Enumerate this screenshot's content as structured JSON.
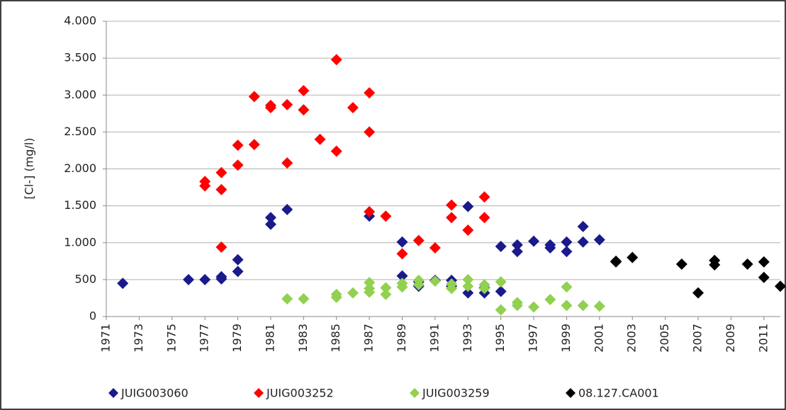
{
  "chart_data": {
    "type": "scatter",
    "y_label": "[Cl-] (mg/l)",
    "xlim": [
      1971,
      2012
    ],
    "xticks": [
      1971,
      1973,
      1975,
      1977,
      1979,
      1981,
      1983,
      1985,
      1987,
      1989,
      1991,
      1993,
      1995,
      1997,
      1999,
      2001,
      2003,
      2005,
      2007,
      2009,
      2011
    ],
    "ylim": [
      0,
      4000
    ],
    "yticks": [
      0,
      500,
      {
        "value": 1000,
        "label": "1.000"
      },
      {
        "value": 1500,
        "label": "1.500"
      },
      {
        "value": 2000,
        "label": "2.000"
      },
      {
        "value": 2500,
        "label": "2.500"
      },
      {
        "value": 3000,
        "label": "3.000"
      },
      {
        "value": 3500,
        "label": "3.500"
      },
      {
        "value": 4000,
        "label": "4.000"
      }
    ],
    "grid": true,
    "legend": "bottom",
    "series": [
      {
        "name": "JUIG003060",
        "color": "#1a1a8c",
        "x": [
          1972,
          1976,
          1977,
          1978,
          1978,
          1979,
          1979,
          1981,
          1981,
          1982,
          1987,
          1989,
          1989,
          1990,
          1990,
          1991,
          1992,
          1992,
          1993,
          1993,
          1994,
          1994,
          1995,
          1995,
          1996,
          1996,
          1997,
          1998,
          1998,
          1999,
          1999,
          2000,
          2000,
          2001
        ],
        "values": [
          450,
          500,
          500,
          510,
          540,
          610,
          770,
          1250,
          1340,
          1450,
          1360,
          1010,
          550,
          410,
          470,
          490,
          410,
          490,
          1490,
          320,
          320,
          390,
          950,
          340,
          880,
          970,
          1020,
          930,
          970,
          880,
          1010,
          1010,
          1220,
          1040
        ]
      },
      {
        "name": "JUIG003252",
        "color": "#ff0000",
        "x": [
          1977,
          1977,
          1978,
          1978,
          1978,
          1979,
          1979,
          1980,
          1980,
          1981,
          1981,
          1982,
          1982,
          1983,
          1983,
          1984,
          1985,
          1985,
          1986,
          1987,
          1987,
          1987,
          1988,
          1989,
          1990,
          1991,
          1992,
          1992,
          1993,
          1994,
          1994
        ],
        "values": [
          1830,
          1770,
          1950,
          1720,
          940,
          2320,
          2050,
          2330,
          2980,
          2860,
          2830,
          2870,
          2080,
          3060,
          2800,
          2400,
          3480,
          2240,
          2830,
          3030,
          2500,
          1420,
          1360,
          850,
          1030,
          930,
          1510,
          1340,
          1170,
          1620,
          1340
        ]
      },
      {
        "name": "JUIG003259",
        "color": "#92d050",
        "x": [
          1982,
          1983,
          1985,
          1985,
          1986,
          1987,
          1987,
          1987,
          1988,
          1988,
          1989,
          1989,
          1990,
          1990,
          1991,
          1992,
          1992,
          1993,
          1993,
          1994,
          1994,
          1995,
          1995,
          1996,
          1996,
          1997,
          1998,
          1999,
          1999,
          2000,
          2001
        ],
        "values": [
          240,
          240,
          300,
          260,
          320,
          460,
          380,
          330,
          390,
          300,
          450,
          400,
          490,
          430,
          480,
          440,
          380,
          500,
          410,
          430,
          380,
          470,
          90,
          190,
          150,
          130,
          230,
          400,
          150,
          150,
          140
        ]
      },
      {
        "name": "08.127.CA001",
        "color": "#000000",
        "x": [
          2002,
          2002,
          2003,
          2006,
          2007,
          2008,
          2008,
          2010,
          2011,
          2011,
          2012
        ],
        "values": [
          750,
          740,
          800,
          710,
          320,
          760,
          700,
          710,
          740,
          530,
          410
        ]
      }
    ]
  }
}
